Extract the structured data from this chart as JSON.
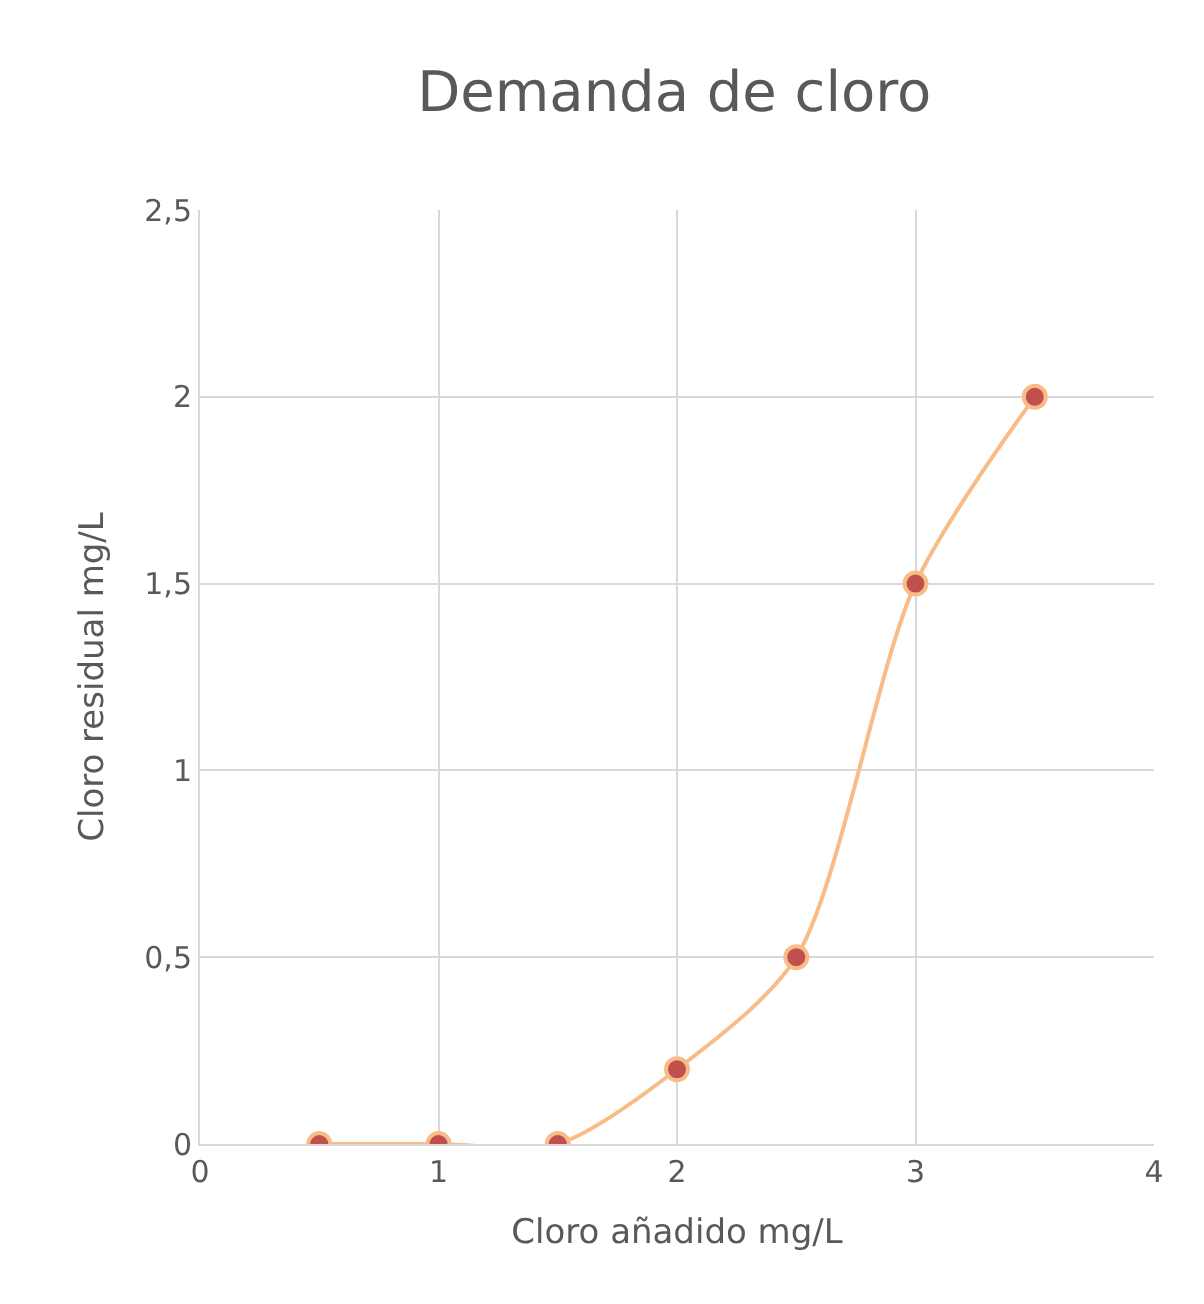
{
  "chart_data": {
    "type": "line",
    "title": "Demanda de cloro",
    "xlabel": "Cloro añadido mg/L",
    "ylabel": "Cloro residual mg/L",
    "x": [
      0.5,
      1,
      1.5,
      2,
      2.5,
      3,
      3.5
    ],
    "series": [
      {
        "color": "#f7bc87",
        "values": [
          0,
          0,
          0,
          0.2,
          0.5,
          1.5,
          2
        ]
      }
    ],
    "xlim": [
      0,
      4
    ],
    "xticks": [
      0,
      1,
      2,
      3,
      4
    ],
    "ylim": [
      0,
      2.5
    ],
    "yticks": [
      0,
      {
        "value": 0.5,
        "label": "0,5"
      },
      1,
      {
        "value": 1.5,
        "label": "1,5"
      },
      2,
      {
        "value": 2.5,
        "label": "2,5"
      }
    ],
    "grid": true,
    "marker": "circle",
    "line_style": "solid"
  }
}
